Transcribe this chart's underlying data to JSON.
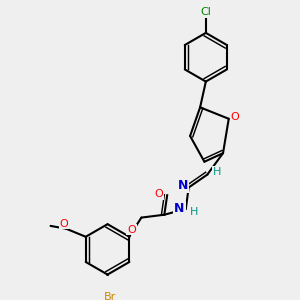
{
  "background_color": "#efefef",
  "bond_width": 1.5,
  "atom_colors": {
    "O": "#ff0000",
    "N": "#0000cc",
    "Br": "#cc8800",
    "Cl": "#008800",
    "H": "#009988",
    "C": "#000000"
  }
}
